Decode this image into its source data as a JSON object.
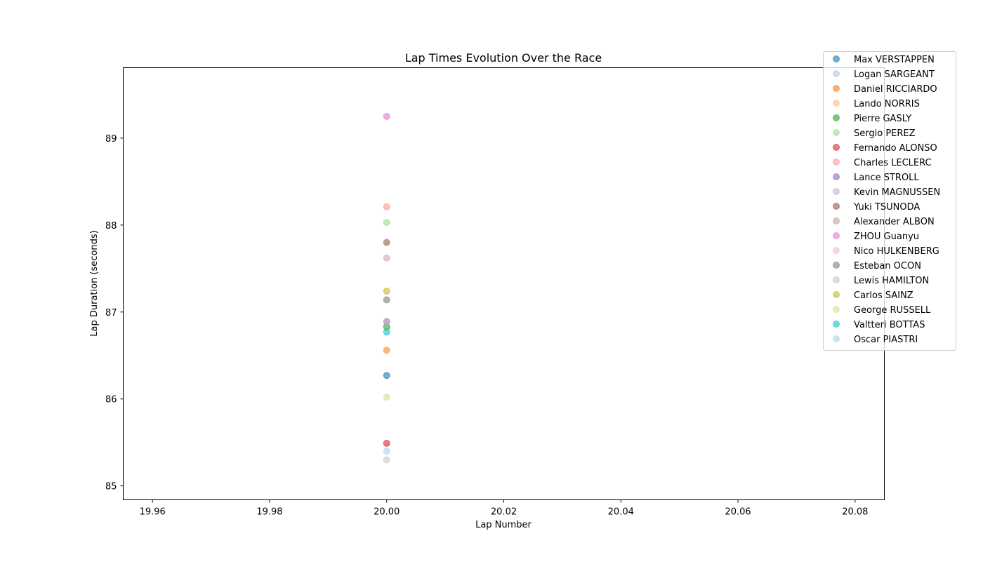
{
  "chart_data": {
    "type": "scatter",
    "title": "Lap Times Evolution Over the Race",
    "xlabel": "Lap Number",
    "ylabel": "Lap Duration (seconds)",
    "xlim": [
      19.955,
      20.085
    ],
    "ylim": [
      84.84,
      89.81
    ],
    "x_ticks": [
      19.96,
      19.98,
      20.0,
      20.02,
      20.04,
      20.06,
      20.08
    ],
    "x_tick_labels": [
      "19.96",
      "19.98",
      "20.00",
      "20.02",
      "20.04",
      "20.06",
      "20.08"
    ],
    "y_ticks": [
      85,
      86,
      87,
      88,
      89
    ],
    "y_tick_labels": [
      "85",
      "86",
      "87",
      "88",
      "89"
    ],
    "grid": false,
    "legend_position": "top-right (outside plot area)",
    "series": [
      {
        "name": "Max VERSTAPPEN",
        "color": "#1f77b4",
        "points": [
          {
            "x": 20,
            "y": 86.27
          }
        ]
      },
      {
        "name": "Logan SARGEANT",
        "color": "#aec7e8",
        "points": [
          {
            "x": 20,
            "y": 87.62
          }
        ]
      },
      {
        "name": "Daniel RICCIARDO",
        "color": "#ff7f0e",
        "points": [
          {
            "x": 20,
            "y": 86.56
          }
        ]
      },
      {
        "name": "Lando NORRIS",
        "color": "#ffbb78",
        "points": [
          {
            "x": 20,
            "y": 86.56
          }
        ]
      },
      {
        "name": "Pierre GASLY",
        "color": "#2ca02c",
        "points": [
          {
            "x": 20,
            "y": 86.83
          }
        ]
      },
      {
        "name": "Sergio PEREZ",
        "color": "#98df8a",
        "points": [
          {
            "x": 20,
            "y": 88.03
          }
        ]
      },
      {
        "name": "Fernando ALONSO",
        "color": "#d62728",
        "points": [
          {
            "x": 20,
            "y": 85.49
          }
        ]
      },
      {
        "name": "Charles LECLERC",
        "color": "#ff9896",
        "points": [
          {
            "x": 20,
            "y": 88.21
          }
        ]
      },
      {
        "name": "Lance STROLL",
        "color": "#9467bd",
        "points": [
          {
            "x": 20,
            "y": 86.89
          }
        ]
      },
      {
        "name": "Kevin MAGNUSSEN",
        "color": "#c5b0d5",
        "points": [
          {
            "x": 20,
            "y": 86.89
          }
        ]
      },
      {
        "name": "Yuki TSUNODA",
        "color": "#8c564b",
        "points": [
          {
            "x": 20,
            "y": 87.8
          }
        ]
      },
      {
        "name": "Alexander ALBON",
        "color": "#c49c94",
        "points": [
          {
            "x": 20,
            "y": 87.8
          }
        ]
      },
      {
        "name": "ZHOU Guanyu",
        "color": "#e377c2",
        "points": [
          {
            "x": 20,
            "y": 89.25
          }
        ]
      },
      {
        "name": "Nico HULKENBERG",
        "color": "#f7b6d2",
        "points": [
          {
            "x": 20,
            "y": 87.62
          }
        ]
      },
      {
        "name": "Esteban OCON",
        "color": "#7f7f7f",
        "points": [
          {
            "x": 20,
            "y": 87.14
          }
        ]
      },
      {
        "name": "Lewis HAMILTON",
        "color": "#c7c7c7",
        "points": [
          {
            "x": 20,
            "y": 85.3
          }
        ]
      },
      {
        "name": "Carlos SAINZ",
        "color": "#bcbd22",
        "points": [
          {
            "x": 20,
            "y": 87.24
          }
        ]
      },
      {
        "name": "George RUSSELL",
        "color": "#dbdb8d",
        "points": [
          {
            "x": 20,
            "y": 86.02
          }
        ]
      },
      {
        "name": "Valtteri BOTTAS",
        "color": "#17becf",
        "points": [
          {
            "x": 20,
            "y": 86.77
          }
        ]
      },
      {
        "name": "Oscar PIASTRI",
        "color": "#9edae5",
        "points": [
          {
            "x": 20,
            "y": 85.4
          }
        ]
      }
    ]
  }
}
